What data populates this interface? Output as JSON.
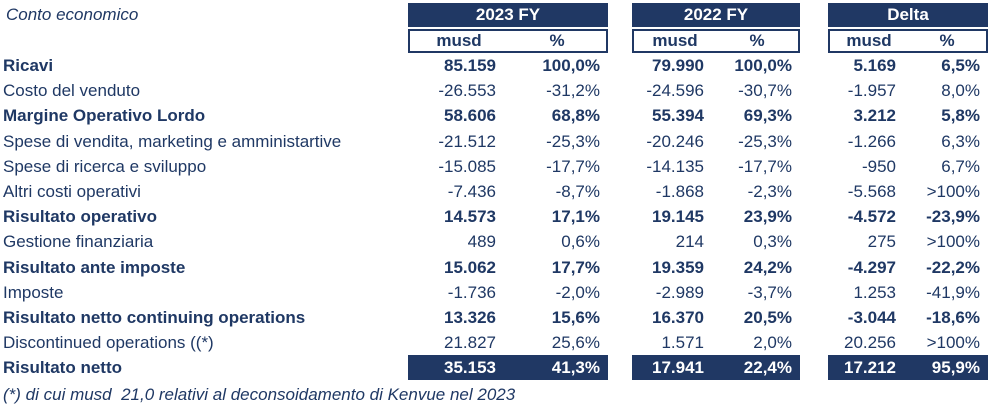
{
  "page": {
    "title": "Conto economico",
    "footnote": "(*) di cui musd  21,0 relativi al deconsoidamento di Kenvue nel 2023"
  },
  "colors": {
    "navy": "#203864",
    "text": "#1F3864",
    "white": "#FFFFFF"
  },
  "table": {
    "groups": [
      {
        "label": "2023 FY"
      },
      {
        "label": "2022 FY"
      },
      {
        "label": "Delta"
      }
    ],
    "subheaders": {
      "musd": "musd",
      "pct": "%"
    },
    "rows": [
      {
        "label": "Ricavi",
        "bold": true,
        "highlight": false,
        "values": [
          "85.159",
          "100,0%",
          "79.990",
          "100,0%",
          "5.169",
          "6,5%"
        ]
      },
      {
        "label": "Costo del venduto",
        "bold": false,
        "highlight": false,
        "values": [
          "-26.553",
          "-31,2%",
          "-24.596",
          "-30,7%",
          "-1.957",
          "8,0%"
        ]
      },
      {
        "label": "Margine Operativo Lordo",
        "bold": true,
        "highlight": false,
        "values": [
          "58.606",
          "68,8%",
          "55.394",
          "69,3%",
          "3.212",
          "5,8%"
        ]
      },
      {
        "label": "Spese di vendita, marketing e amministartive",
        "bold": false,
        "highlight": false,
        "values": [
          "-21.512",
          "-25,3%",
          "-20.246",
          "-25,3%",
          "-1.266",
          "6,3%"
        ]
      },
      {
        "label": "Spese di ricerca e sviluppo",
        "bold": false,
        "highlight": false,
        "values": [
          "-15.085",
          "-17,7%",
          "-14.135",
          "-17,7%",
          "-950",
          "6,7%"
        ]
      },
      {
        "label": "Altri costi operativi",
        "bold": false,
        "highlight": false,
        "values": [
          "-7.436",
          "-8,7%",
          "-1.868",
          "-2,3%",
          "-5.568",
          ">100%"
        ]
      },
      {
        "label": "Risultato operativo",
        "bold": true,
        "highlight": false,
        "values": [
          "14.573",
          "17,1%",
          "19.145",
          "23,9%",
          "-4.572",
          "-23,9%"
        ]
      },
      {
        "label": "Gestione finanziaria",
        "bold": false,
        "highlight": false,
        "values": [
          "489",
          "0,6%",
          "214",
          "0,3%",
          "275",
          ">100%"
        ]
      },
      {
        "label": "Risultato ante imposte",
        "bold": true,
        "highlight": false,
        "values": [
          "15.062",
          "17,7%",
          "19.359",
          "24,2%",
          "-4.297",
          "-22,2%"
        ]
      },
      {
        "label": "Imposte",
        "bold": false,
        "highlight": false,
        "values": [
          "-1.736",
          "-2,0%",
          "-2.989",
          "-3,7%",
          "1.253",
          "-41,9%"
        ]
      },
      {
        "label": "Risultato netto continuing operations",
        "bold": true,
        "highlight": false,
        "values": [
          "13.326",
          "15,6%",
          "16.370",
          "20,5%",
          "-3.044",
          "-18,6%"
        ]
      },
      {
        "label": "Discontinued operations ((*)",
        "bold": false,
        "highlight": false,
        "values": [
          "21.827",
          "25,6%",
          "1.571",
          "2,0%",
          "20.256",
          ">100%"
        ]
      },
      {
        "label": "Risultato netto",
        "bold": true,
        "highlight": true,
        "values": [
          "35.153",
          "41,3%",
          "17.941",
          "22,4%",
          "17.212",
          "95,9%"
        ]
      }
    ]
  }
}
